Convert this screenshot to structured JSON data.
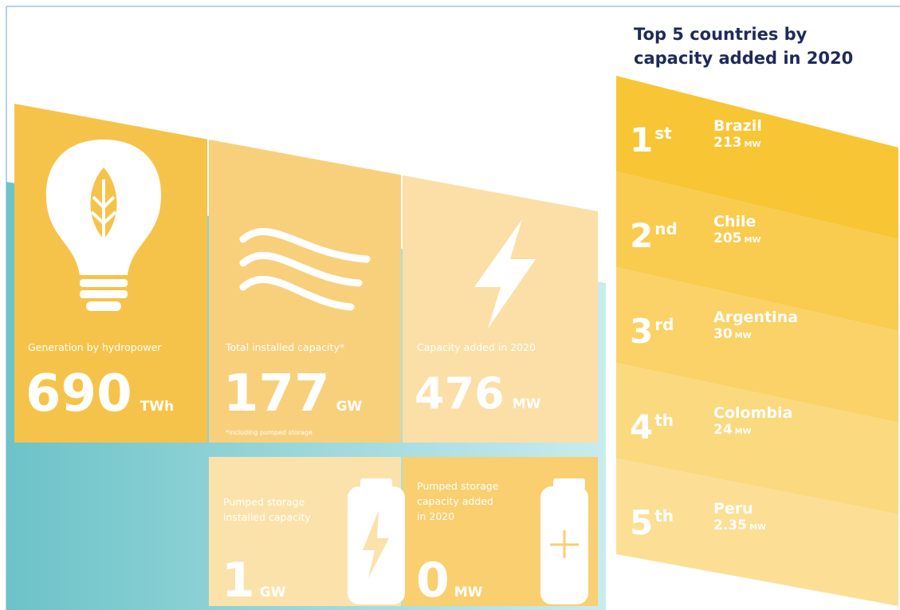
{
  "stats": [
    {
      "label": [
        "Generation by hydropower"
      ],
      "value": 690,
      "unit": "TWh"
    },
    {
      "label": [
        "Total installed capacity*"
      ],
      "value": 177,
      "unit": "GW",
      "note": "*including pumped storage"
    },
    {
      "label": [
        "Capacity added in 2020"
      ],
      "value": 476,
      "unit": "MW"
    },
    {
      "label": [
        "Pumped storage",
        "installed capacity"
      ],
      "value": 1,
      "unit": "GW"
    },
    {
      "label": [
        "Pumped storage",
        "capacity added",
        "in 2020"
      ],
      "value": 0,
      "unit": "MW"
    }
  ],
  "ranking": {
    "title": [
      "Top 5 countries by",
      "capacity added in 2020"
    ],
    "items": [
      {
        "rank": 1,
        "suffix": "st",
        "country": "Brazil",
        "value": 213,
        "unit": "MW"
      },
      {
        "rank": 2,
        "suffix": "nd",
        "country": "Chile",
        "value": 205,
        "unit": "MW"
      },
      {
        "rank": 3,
        "suffix": "rd",
        "country": "Argentina",
        "value": 30,
        "unit": "MW"
      },
      {
        "rank": 4,
        "suffix": "th",
        "country": "Colombia",
        "value": 24,
        "unit": "MW"
      },
      {
        "rank": 5,
        "suffix": "th",
        "country": "Peru",
        "value": 2.35,
        "unit": "MW"
      }
    ]
  }
}
